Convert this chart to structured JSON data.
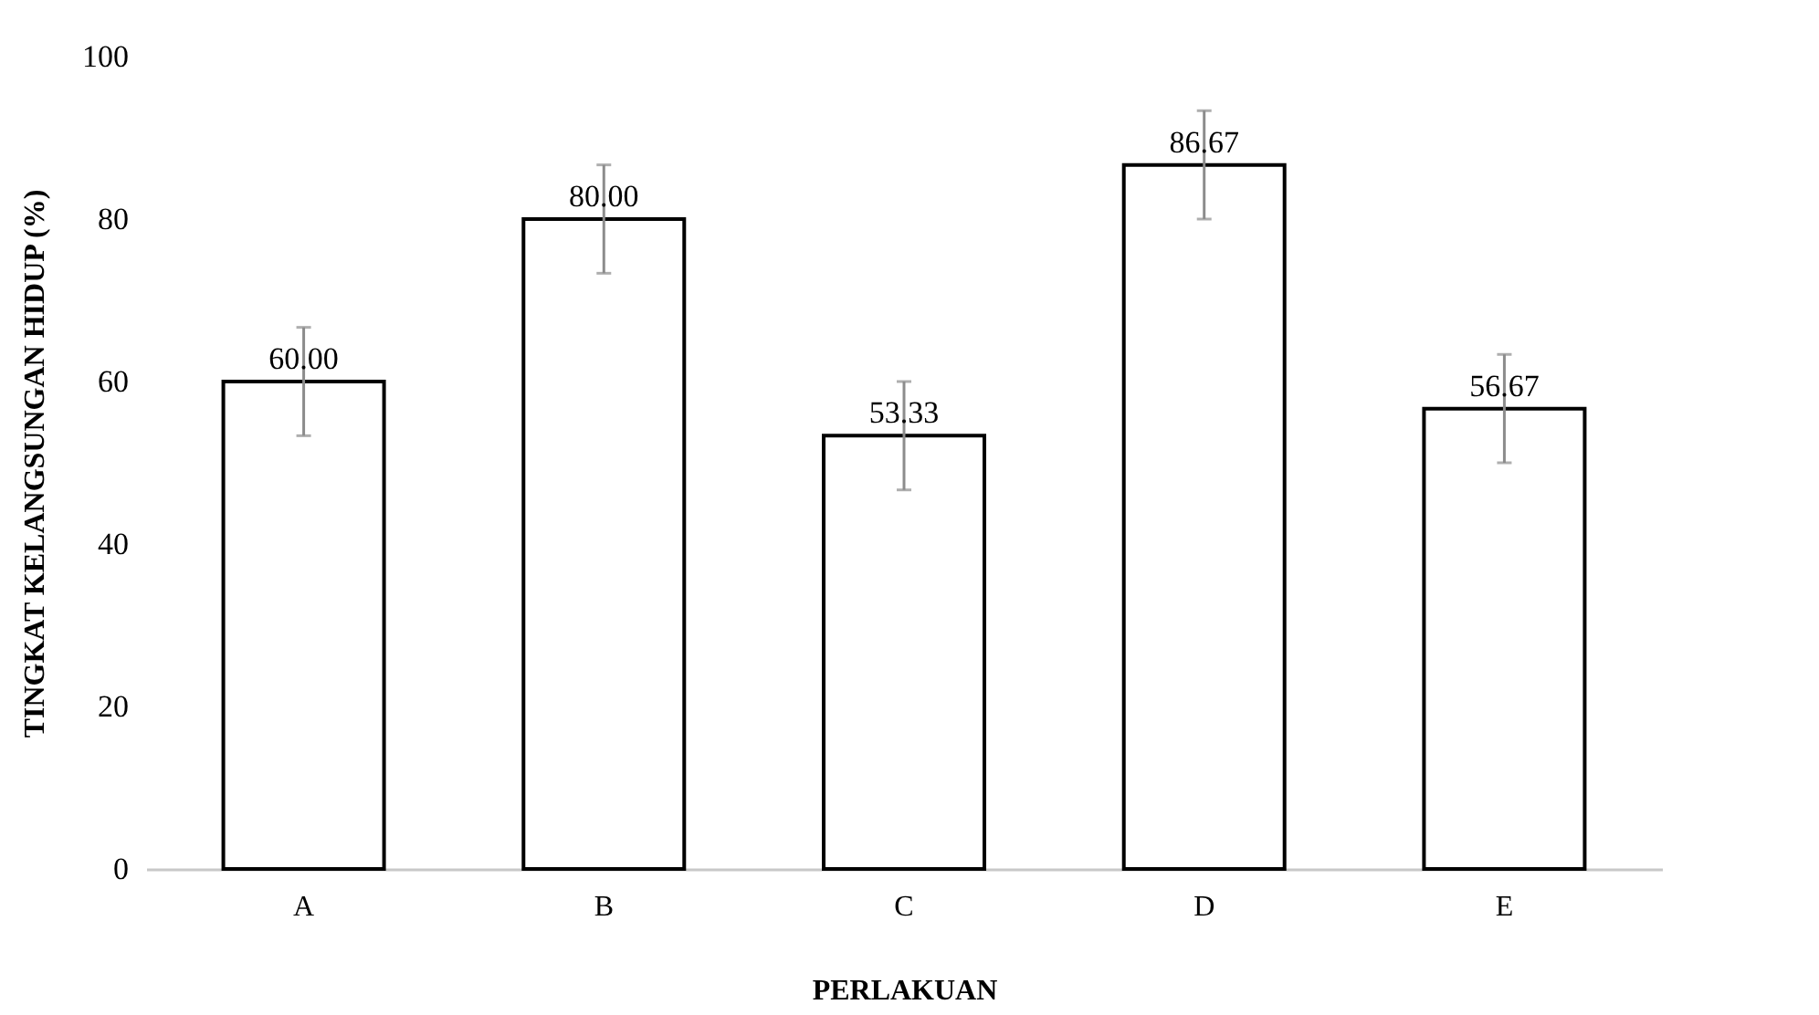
{
  "chart_data": {
    "type": "bar",
    "xlabel": "PERLAKUAN",
    "ylabel": "TINGKAT KELANGSUNGAN HIDUP (%)",
    "categories": [
      "A",
      "B",
      "C",
      "D",
      "E"
    ],
    "values": [
      60.0,
      80.0,
      53.33,
      86.67,
      56.67
    ],
    "errors": [
      6.67,
      6.67,
      6.67,
      6.67,
      6.67
    ],
    "value_labels": [
      "60.00",
      "80.00",
      "53.33",
      "86.67",
      "56.67"
    ],
    "color": "#ffffff",
    "ylim": [
      0,
      100
    ],
    "yticks": [
      0,
      20,
      40,
      60,
      80,
      100
    ],
    "grid": false
  }
}
